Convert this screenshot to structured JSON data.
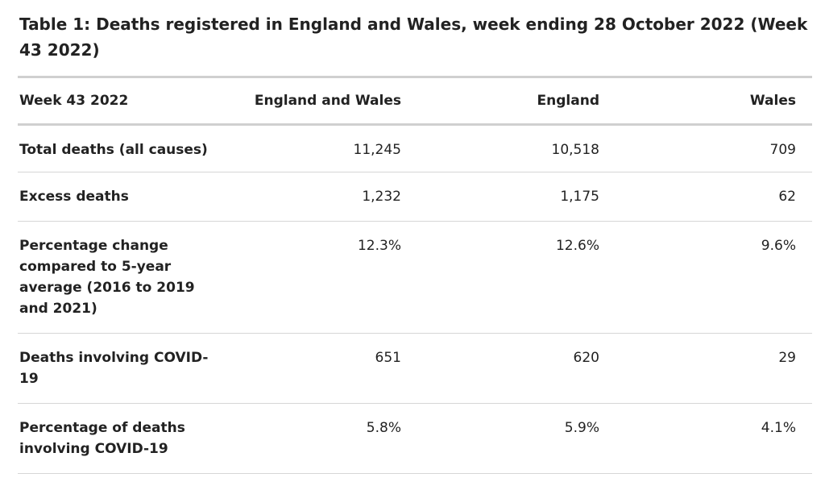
{
  "caption": "Table 1: Deaths registered in England and Wales, week ending 28 October 2022 (Week 43 2022)",
  "table": {
    "headers": [
      "Week 43 2022",
      "England and Wales",
      "England",
      "Wales"
    ],
    "rows": [
      {
        "label": "Total deaths (all causes)",
        "values": [
          "11,245",
          "10,518",
          "709"
        ]
      },
      {
        "label": "Excess deaths",
        "values": [
          "1,232",
          "1,175",
          "62"
        ]
      },
      {
        "label": "Percentage change compared to 5-year average (2016 to 2019 and 2021)",
        "values": [
          "12.3%",
          "12.6%",
          "9.6%"
        ]
      },
      {
        "label": "Deaths involving COVID-19",
        "values": [
          "651",
          "620",
          "29"
        ]
      },
      {
        "label": "Percentage of deaths involving COVID-19",
        "values": [
          "5.8%",
          "5.9%",
          "4.1%"
        ]
      }
    ]
  }
}
